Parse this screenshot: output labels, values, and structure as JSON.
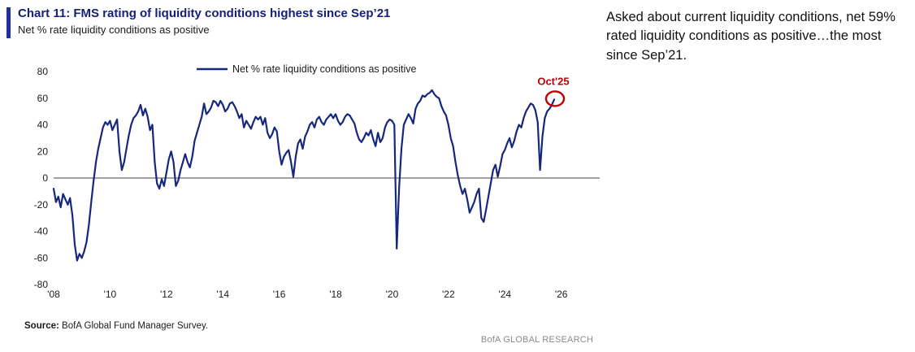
{
  "header": {
    "title": "Chart 11: FMS rating of liquidity conditions highest since Sep’21",
    "subtitle": "Net % rate liquidity conditions as positive"
  },
  "commentary": "Asked about current liquidity conditions, net 59% rated liquidity conditions as positive…the most since Sep’21.",
  "footer": {
    "source_label": "Source:",
    "source_text": " BofA Global Fund Manager Survey.",
    "watermark": "BofA GLOBAL RESEARCH"
  },
  "chart_data": {
    "type": "line",
    "title": "Net % rate liquidity conditions as positive",
    "legend": "Net % rate liquidity conditions as positive",
    "annotation": {
      "label": "Oct'25",
      "value": 59
    },
    "colors": {
      "line": "#16277e",
      "annotation": "#c00000",
      "zero_line": "#444444"
    },
    "ylim": [
      -80,
      80
    ],
    "yticks": [
      80,
      60,
      40,
      20,
      0,
      -20,
      -40,
      -60,
      -80
    ],
    "xticks": [
      "'08",
      "'10",
      "'12",
      "'14",
      "'16",
      "'18",
      "'20",
      "'22",
      "'24",
      "'26"
    ],
    "x_start_year": 2008,
    "grid": false,
    "legend_position": "top-center",
    "series": [
      {
        "name": "Net % rate liquidity conditions as positive",
        "frequency": "monthly",
        "values": [
          -8,
          -18,
          -14,
          -22,
          -12,
          -16,
          -20,
          -15,
          -28,
          -50,
          -62,
          -57,
          -60,
          -55,
          -48,
          -35,
          -18,
          -2,
          12,
          22,
          30,
          38,
          42,
          40,
          43,
          36,
          40,
          44,
          20,
          6,
          12,
          22,
          32,
          40,
          45,
          47,
          50,
          55,
          47,
          52,
          46,
          36,
          40,
          12,
          -4,
          -8,
          -1,
          -6,
          4,
          14,
          20,
          12,
          -6,
          -2,
          6,
          12,
          18,
          12,
          8,
          16,
          28,
          34,
          40,
          46,
          56,
          48,
          50,
          53,
          58,
          57,
          54,
          58,
          55,
          50,
          52,
          56,
          57,
          54,
          50,
          45,
          48,
          38,
          43,
          40,
          37,
          42,
          46,
          44,
          46,
          40,
          45,
          34,
          30,
          33,
          38,
          35,
          20,
          10,
          16,
          19,
          21,
          12,
          1,
          16,
          26,
          29,
          22,
          31,
          35,
          40,
          42,
          38,
          44,
          46,
          42,
          40,
          44,
          46,
          48,
          45,
          48,
          43,
          40,
          42,
          46,
          48,
          47,
          44,
          41,
          34,
          29,
          27,
          30,
          34,
          32,
          36,
          29,
          24,
          34,
          27,
          30,
          38,
          42,
          44,
          43,
          40,
          -53,
          -8,
          22,
          40,
          44,
          48,
          45,
          41,
          52,
          56,
          58,
          62,
          61,
          63,
          64,
          66,
          63,
          61,
          60,
          54,
          50,
          47,
          40,
          30,
          24,
          12,
          2,
          -6,
          -12,
          -8,
          -16,
          -26,
          -22,
          -18,
          -12,
          -8,
          -30,
          -33,
          -24,
          -14,
          -4,
          6,
          10,
          1,
          9,
          18,
          21,
          26,
          30,
          23,
          28,
          35,
          40,
          38,
          45,
          50,
          53,
          56,
          55,
          51,
          42,
          6,
          31,
          45,
          50,
          52,
          55,
          59
        ]
      }
    ]
  }
}
